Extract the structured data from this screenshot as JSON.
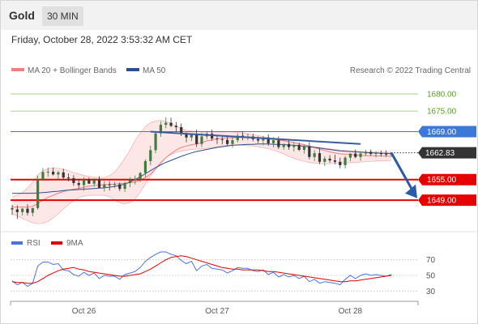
{
  "header": {
    "instrument": "Gold",
    "timeframe": "30 MIN"
  },
  "datetime": "Friday, October 28, 2022 3:53:32 AM CET",
  "legend": {
    "bollinger_label": "MA 20 + Bollinger Bands",
    "ma50_label": "MA 50",
    "credit": "Research © 2022 Trading Central",
    "rsi_label": "RSI",
    "rsi_ma_label": "9MA"
  },
  "colors": {
    "bollinger": "#f08080",
    "band_fill": "#fde6e6",
    "ma50": "#2e4d8f",
    "candle_up": "#3f7d3f",
    "candle_down": "#333333",
    "trendline": "#3a5ba0",
    "support": "#e60000",
    "pivot": "#3c78d8",
    "resistance": "#8fc45a",
    "price_badge": "#333333",
    "rsi": "#4a72d8",
    "rsi_ma": "#e00000"
  },
  "chart_data": [
    {
      "type": "candlestick",
      "x_ticks": [
        "Oct 26",
        "Oct 27",
        "Oct 28"
      ],
      "ylim": [
        1640.5,
        1684.5
      ],
      "levels": [
        {
          "label": "1680.00",
          "value": 1680.0,
          "kind": "resistance"
        },
        {
          "label": "1675.00",
          "value": 1675.0,
          "kind": "resistance"
        },
        {
          "label": "1669.00",
          "value": 1669.0,
          "kind": "pivot"
        },
        {
          "label": "1655.00",
          "value": 1655.0,
          "kind": "support"
        },
        {
          "label": "1649.00",
          "value": 1649.0,
          "kind": "support"
        }
      ],
      "last_price": {
        "label": "1662.83",
        "value": 1662.83
      },
      "candles": {
        "open": [
          1646.6,
          1646.3,
          1645.5,
          1646.5,
          1645.3,
          1646.7,
          1655.0,
          1657.2,
          1657.3,
          1656.5,
          1657.1,
          1655.6,
          1655.4,
          1654.0,
          1653.4,
          1654.9,
          1653.8,
          1654.8,
          1652.6,
          1653.6,
          1653.5,
          1653.6,
          1652.3,
          1654.0,
          1654.8,
          1655.2,
          1656.9,
          1660.4,
          1663.6,
          1668.5,
          1671.0,
          1671.6,
          1670.7,
          1670.3,
          1668.3,
          1667.3,
          1668.4,
          1665.4,
          1667.6,
          1668.4,
          1667.0,
          1666.8,
          1666.6,
          1665.4,
          1666.5,
          1667.8,
          1667.5,
          1667.6,
          1666.8,
          1666.4,
          1667.3,
          1665.6,
          1666.5,
          1664.5,
          1665.4,
          1664.5,
          1665.1,
          1663.7,
          1664.7,
          1661.6,
          1662.7,
          1660.2,
          1661.1,
          1660.6,
          1660.2,
          1659.2,
          1661.4,
          1662.6,
          1661.6,
          1662.6,
          1663.1,
          1662.5,
          1662.7,
          1662.6,
          1662.3
        ],
        "high": [
          1647.6,
          1647.5,
          1646.7,
          1647.8,
          1646.7,
          1656.1,
          1658.4,
          1658.5,
          1658.5,
          1657.6,
          1658.2,
          1656.8,
          1656.3,
          1655.2,
          1655.7,
          1655.6,
          1655.4,
          1656.0,
          1654.6,
          1654.6,
          1654.4,
          1654.2,
          1654.4,
          1655.7,
          1656.2,
          1657.3,
          1660.9,
          1664.9,
          1669.1,
          1672.0,
          1673.2,
          1673.1,
          1671.8,
          1671.4,
          1668.8,
          1668.3,
          1669.6,
          1668.6,
          1669.2,
          1669.6,
          1668.0,
          1667.6,
          1667.8,
          1667.5,
          1668.5,
          1669.1,
          1668.5,
          1668.4,
          1667.6,
          1667.8,
          1668.2,
          1667.4,
          1667.6,
          1665.5,
          1666.5,
          1665.9,
          1665.8,
          1665.2,
          1665.9,
          1663.6,
          1664.1,
          1661.8,
          1662.1,
          1662.3,
          1661.4,
          1661.9,
          1662.6,
          1663.8,
          1663.2,
          1663.7,
          1663.8,
          1663.3,
          1663.5,
          1663.5,
          1662.9
        ],
        "low": [
          1644.7,
          1643.5,
          1644.5,
          1644.5,
          1644.3,
          1646.2,
          1654.6,
          1655.8,
          1656.2,
          1654.9,
          1655.1,
          1654.5,
          1653.2,
          1652.4,
          1651.7,
          1653.8,
          1652.9,
          1652.6,
          1651.5,
          1651.8,
          1652.5,
          1651.6,
          1651.4,
          1652.8,
          1653.6,
          1654.3,
          1655.8,
          1659.2,
          1662.7,
          1667.5,
          1670.0,
          1670.3,
          1668.9,
          1667.7,
          1665.9,
          1666.3,
          1664.5,
          1664.5,
          1666.8,
          1666.3,
          1665.4,
          1665.3,
          1664.9,
          1664.3,
          1665.8,
          1666.5,
          1666.5,
          1666.2,
          1665.7,
          1665.0,
          1664.9,
          1664.4,
          1663.9,
          1663.7,
          1663.7,
          1663.2,
          1663.3,
          1662.6,
          1660.9,
          1660.4,
          1659.5,
          1659.0,
          1659.9,
          1659.5,
          1658.3,
          1658.2,
          1660.3,
          1661.2,
          1660.5,
          1661.9,
          1661.9,
          1661.5,
          1661.7,
          1661.6,
          1661.6
        ],
        "close": [
          1646.3,
          1645.5,
          1646.5,
          1645.3,
          1646.7,
          1655.0,
          1657.2,
          1657.3,
          1656.5,
          1657.1,
          1655.6,
          1655.4,
          1654.0,
          1653.4,
          1654.9,
          1653.8,
          1654.8,
          1652.6,
          1653.6,
          1653.5,
          1653.6,
          1652.3,
          1654.0,
          1654.8,
          1655.2,
          1656.9,
          1660.4,
          1663.6,
          1668.5,
          1671.0,
          1671.6,
          1670.7,
          1670.3,
          1668.3,
          1667.3,
          1668.4,
          1665.4,
          1667.6,
          1668.4,
          1667.0,
          1666.8,
          1666.6,
          1665.4,
          1666.5,
          1667.8,
          1667.5,
          1667.6,
          1666.8,
          1666.4,
          1667.3,
          1665.6,
          1666.5,
          1664.5,
          1665.4,
          1664.5,
          1665.1,
          1663.7,
          1664.7,
          1661.6,
          1662.7,
          1660.2,
          1661.1,
          1660.6,
          1660.2,
          1659.2,
          1661.4,
          1662.6,
          1661.6,
          1662.6,
          1663.1,
          1662.5,
          1662.7,
          1662.6,
          1662.3,
          1662.83
        ]
      },
      "ma20": [
        1647.0,
        1646.9,
        1647.0,
        1646.9,
        1647.2,
        1648.0,
        1649.0,
        1649.8,
        1650.4,
        1651.0,
        1651.5,
        1651.9,
        1652.2,
        1652.4,
        1652.8,
        1653.1,
        1653.3,
        1653.4,
        1653.5,
        1653.6,
        1653.7,
        1653.8,
        1653.9,
        1654.1,
        1654.3,
        1654.8,
        1655.6,
        1656.6,
        1658.1,
        1659.8,
        1661.4,
        1662.6,
        1663.6,
        1664.4,
        1664.8,
        1665.2,
        1665.4,
        1665.8,
        1666.3,
        1666.6,
        1666.9,
        1667.1,
        1667.2,
        1667.2,
        1667.3,
        1667.3,
        1667.2,
        1667.2,
        1667.1,
        1667.1,
        1666.9,
        1666.8,
        1666.6,
        1666.4,
        1666.1,
        1665.9,
        1665.5,
        1665.2,
        1664.8,
        1664.4,
        1663.9,
        1663.5,
        1663.1,
        1662.8,
        1662.5,
        1662.4,
        1662.3,
        1662.2,
        1662.1,
        1662.0,
        1662.0,
        1661.9,
        1661.9,
        1661.9,
        1661.8
      ],
      "bb_upper": [
        1650.0,
        1650.5,
        1651.2,
        1652.6,
        1654.3,
        1656.4,
        1657.5,
        1658.2,
        1658.4,
        1658.3,
        1658.0,
        1657.6,
        1657.0,
        1656.6,
        1656.2,
        1655.9,
        1655.7,
        1655.6,
        1655.6,
        1656.2,
        1657.2,
        1659.0,
        1661.2,
        1663.7,
        1666.5,
        1668.6,
        1670.5,
        1671.6,
        1672.1,
        1672.3,
        1672.0,
        1671.4,
        1670.6,
        1670.0,
        1669.4,
        1669.2,
        1669.0,
        1668.9,
        1668.9,
        1668.9,
        1668.9,
        1668.9,
        1669.0,
        1668.9,
        1668.8,
        1668.6,
        1668.4,
        1668.1,
        1667.9,
        1667.5,
        1667.2,
        1666.8,
        1666.5,
        1666.2,
        1665.8,
        1665.5,
        1665.3,
        1665.0,
        1664.8,
        1664.6,
        1664.4,
        1664.2,
        1664.0,
        1663.8,
        1663.6,
        1663.5,
        1663.4,
        1663.3,
        1663.2,
        1663.1,
        1663.0,
        1663.0,
        1663.0,
        1663.0,
        1663.0
      ],
      "bb_lower": [
        1645.0,
        1644.4,
        1643.7,
        1643.0,
        1642.4,
        1642.1,
        1642.2,
        1642.8,
        1643.8,
        1645.0,
        1646.4,
        1647.7,
        1648.8,
        1649.7,
        1650.2,
        1650.4,
        1650.4,
        1650.4,
        1650.4,
        1650.0,
        1649.0,
        1648.2,
        1647.9,
        1648.3,
        1649.4,
        1651.3,
        1653.7,
        1656.0,
        1658.3,
        1660.1,
        1661.4,
        1662.3,
        1662.9,
        1663.3,
        1663.6,
        1663.8,
        1663.9,
        1664.0,
        1664.1,
        1664.3,
        1664.6,
        1664.8,
        1665.0,
        1665.1,
        1665.1,
        1665.0,
        1664.9,
        1664.8,
        1664.6,
        1664.3,
        1664.0,
        1663.6,
        1663.1,
        1662.5,
        1661.8,
        1661.2,
        1660.7,
        1660.3,
        1660.0,
        1659.8,
        1659.7,
        1659.6,
        1659.6,
        1659.7,
        1659.8,
        1659.8,
        1659.9,
        1660.0,
        1660.1,
        1660.2,
        1660.3,
        1660.4,
        1660.5,
        1660.5,
        1660.6
      ],
      "ma50": [
        1651.0,
        1651.0,
        1651.0,
        1651.0,
        1651.0,
        1651.1,
        1651.2,
        1651.3,
        1651.5,
        1651.6,
        1651.8,
        1651.9,
        1652.0,
        1652.1,
        1652.2,
        1652.3,
        1652.4,
        1652.5,
        1652.6,
        1652.8,
        1653.0,
        1653.3,
        1653.7,
        1654.3,
        1655.0,
        1655.8,
        1656.7,
        1657.6,
        1658.5,
        1659.3,
        1660.0,
        1660.6,
        1661.2,
        1661.8,
        1662.3,
        1662.8,
        1663.2,
        1663.5,
        1663.8,
        1664.1,
        1664.4,
        1664.6,
        1664.8,
        1665.0,
        1665.1,
        1665.2,
        1665.3,
        1665.3,
        1665.4,
        1665.4,
        1665.4,
        1665.3,
        1665.3,
        1665.2,
        1665.1,
        1665.0,
        1664.9,
        1664.7,
        1664.6,
        1664.4,
        1664.2,
        1664.0,
        1663.8,
        1663.6,
        1663.4,
        1663.3,
        1663.2,
        1663.1,
        1663.0,
        1662.9,
        1662.8,
        1662.8,
        1662.7,
        1662.7,
        1662.6
      ],
      "trendline": [
        {
          "x": 1669.0,
          "t": 27
        },
        {
          "x": 1665.4,
          "t": 68
        }
      ]
    },
    {
      "type": "line",
      "ylim": [
        20,
        80
      ],
      "y_ticks": [
        "70",
        "50",
        "30"
      ],
      "series": [
        {
          "name": "RSI",
          "values": [
            43,
            38,
            41,
            36,
            40,
            62,
            67,
            67,
            64,
            65,
            57,
            56,
            51,
            49,
            54,
            50,
            53,
            46,
            50,
            49,
            49,
            45,
            51,
            53,
            55,
            60,
            68,
            73,
            77,
            80,
            80,
            77,
            75,
            69,
            65,
            68,
            56,
            62,
            64,
            59,
            58,
            57,
            53,
            56,
            60,
            59,
            59,
            56,
            55,
            57,
            51,
            54,
            48,
            51,
            48,
            50,
            46,
            49,
            42,
            45,
            40,
            42,
            41,
            40,
            38,
            45,
            50,
            46,
            50,
            52,
            50,
            51,
            50,
            49,
            51
          ]
        },
        {
          "name": "9MA",
          "values": [
            42,
            41,
            41,
            40,
            40,
            42,
            46,
            50,
            53,
            56,
            58,
            59,
            60,
            58,
            57,
            55,
            54,
            53,
            52,
            51,
            50,
            49,
            49,
            50,
            51,
            52,
            55,
            58,
            62,
            66,
            70,
            73,
            74,
            75,
            74,
            72,
            70,
            68,
            66,
            64,
            62,
            60,
            59,
            58,
            58,
            57,
            57,
            57,
            57,
            56,
            55,
            55,
            54,
            53,
            52,
            51,
            50,
            49,
            48,
            47,
            46,
            45,
            44,
            43,
            42,
            42,
            43,
            43,
            44,
            45,
            46,
            47,
            48,
            49,
            50
          ]
        }
      ]
    }
  ]
}
